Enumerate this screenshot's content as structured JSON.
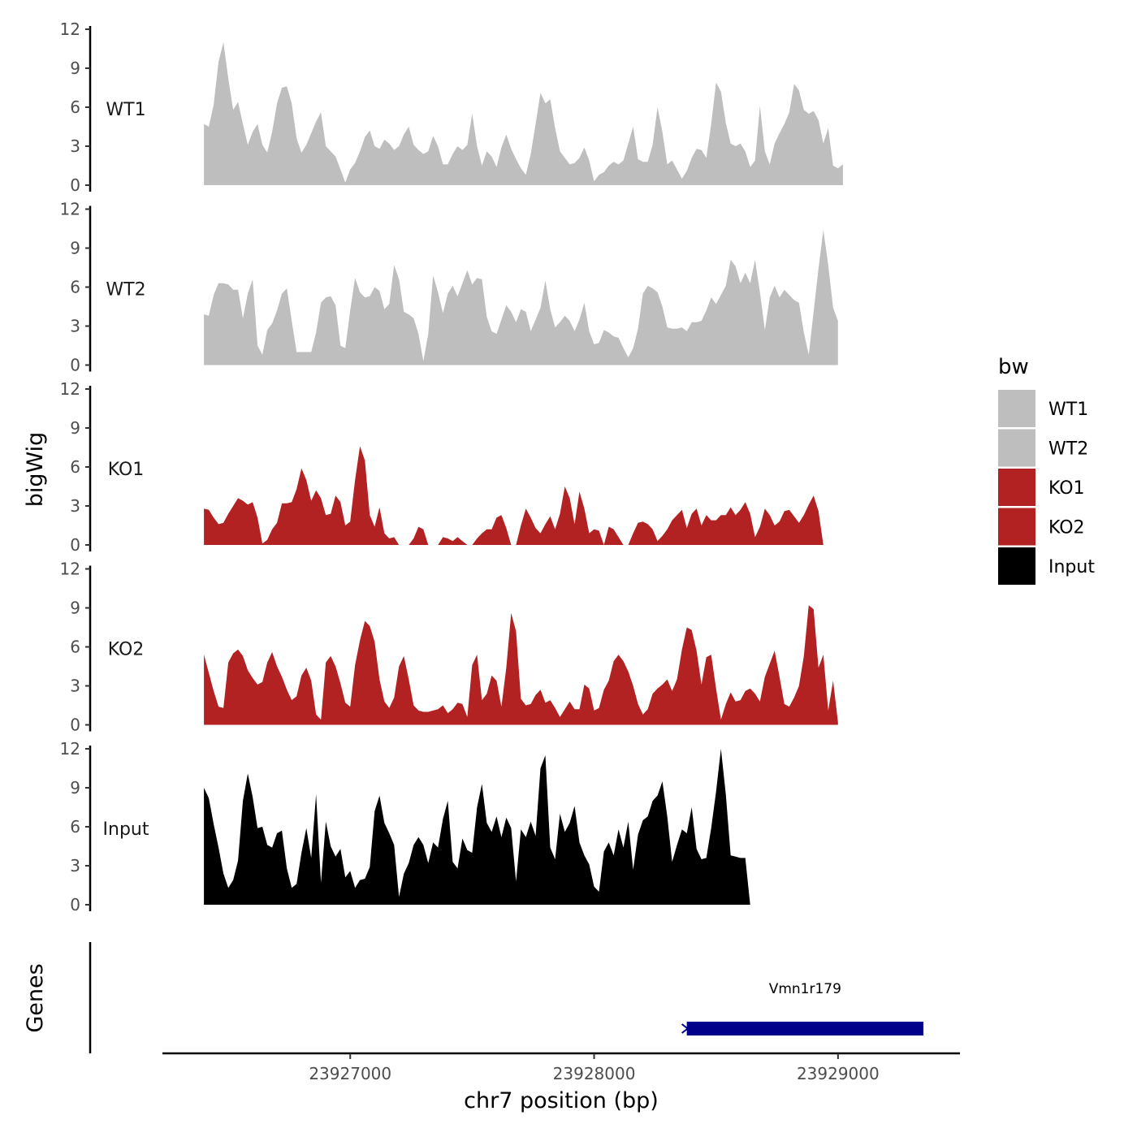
{
  "chart_data": {
    "type": "area",
    "xlabel": "chr7 position (bp)",
    "ylabel": "bigWig",
    "genes_label": "Genes",
    "xlim": [
      23926230,
      23929500
    ],
    "x_ticks": [
      {
        "value": 23927000,
        "label": "23927000"
      },
      {
        "value": 23928000,
        "label": "23928000"
      },
      {
        "value": 23929000,
        "label": "23929000"
      }
    ],
    "ylim": [
      0,
      12
    ],
    "y_ticks": [
      {
        "value": 0,
        "label": "0"
      },
      {
        "value": 3,
        "label": "3"
      },
      {
        "value": 6,
        "label": "6"
      },
      {
        "value": 9,
        "label": "9"
      },
      {
        "value": 12,
        "label": "12"
      }
    ],
    "x_start": 23926400,
    "x_step": 20,
    "legend": {
      "title": "bw",
      "items": [
        {
          "label": "WT1",
          "color": "#bebebe"
        },
        {
          "label": "WT2",
          "color": "#bebebe"
        },
        {
          "label": "KO1",
          "color": "#b22222"
        },
        {
          "label": "KO2",
          "color": "#b22222"
        },
        {
          "label": "Input",
          "color": "#000000"
        }
      ]
    },
    "series": [
      {
        "name": "WT1",
        "color": "#bebebe",
        "values": [
          4.7,
          4.5,
          6.2,
          9.5,
          11,
          8.2,
          5.8,
          6.4,
          4.7,
          3.1,
          4.1,
          4.7,
          3.1,
          2.5,
          4.1,
          6.3,
          7.5,
          7.6,
          6.3,
          3.6,
          2.5,
          3.1,
          4,
          4.9,
          5.6,
          3,
          2.6,
          2.2,
          1.2,
          0.2,
          1.2,
          1.7,
          2.6,
          3.7,
          4.2,
          3,
          2.8,
          3.5,
          3.2,
          2.7,
          3,
          3.9,
          4.5,
          3.1,
          2.7,
          2.4,
          2.6,
          3.8,
          3,
          1.6,
          1.6,
          2.4,
          3,
          2.7,
          3.1,
          5.5,
          3,
          1.5,
          2.6,
          2.2,
          1.4,
          2.9,
          3.9,
          2.8,
          2,
          1.3,
          0.8,
          2.4,
          4.7,
          7.1,
          6.3,
          6.6,
          4.4,
          2.6,
          2.1,
          1.6,
          1.7,
          2.1,
          2.9,
          1.9,
          0.3,
          0.8,
          1,
          1.5,
          1.8,
          1.6,
          1.9,
          3.2,
          4.5,
          2,
          1.8,
          1.8,
          3.1,
          6,
          4.1,
          1.6,
          1.9,
          1.2,
          0.5,
          1.1,
          2.1,
          2.8,
          2.7,
          2.1,
          4.7,
          7.9,
          7.2,
          4.8,
          3.2,
          3,
          3.2,
          2.6,
          1.4,
          1.9,
          6.1,
          2.6,
          1.6,
          3.2,
          4,
          4.7,
          5.6,
          7.8,
          7.3,
          5.8,
          5.5,
          5.7,
          5,
          3.2,
          4.4,
          1.5,
          1.3,
          1.6
        ]
      },
      {
        "name": "WT2",
        "color": "#bebebe",
        "values": [
          3.9,
          3.8,
          5.4,
          6.3,
          6.3,
          6.2,
          5.8,
          5.8,
          3.6,
          5.5,
          6.6,
          1.5,
          0.8,
          2.7,
          3.2,
          4.2,
          5.5,
          5.9,
          3.4,
          1,
          1,
          1,
          1,
          2.5,
          4.8,
          5.2,
          5.3,
          4.6,
          1.5,
          1.3,
          4.2,
          6.7,
          5.6,
          5.2,
          5.3,
          6,
          5.7,
          4.3,
          4.7,
          7.7,
          6.6,
          4.1,
          3.9,
          3.6,
          2.4,
          0.3,
          2.4,
          6.9,
          5.6,
          4,
          5.5,
          6.1,
          5.3,
          6.3,
          7.3,
          6.2,
          6.7,
          6.6,
          3.7,
          2.6,
          2.4,
          3.5,
          4.6,
          4.1,
          3.3,
          4.3,
          4.1,
          2.6,
          3.5,
          4.4,
          6.5,
          4.3,
          2.9,
          3.3,
          3.8,
          3.4,
          2.6,
          3.5,
          4.8,
          2.6,
          1.6,
          1.7,
          2.7,
          2.5,
          2.2,
          2.1,
          1.3,
          0.6,
          1.3,
          2.8,
          5.5,
          6.1,
          5.9,
          5.6,
          4.5,
          2.9,
          2.8,
          2.8,
          2.9,
          2.6,
          3.3,
          3.3,
          3.4,
          4.2,
          5.2,
          4.7,
          5.4,
          6.1,
          8.1,
          7.6,
          6.3,
          7.1,
          6.3,
          8.1,
          5.6,
          2.7,
          5.2,
          6.1,
          5.2,
          5.8,
          5.4,
          5,
          4.8,
          2.5,
          0.8,
          4.1,
          7.4,
          10.4,
          7.7,
          4.4,
          3.4
        ]
      },
      {
        "name": "KO1",
        "color": "#b22222",
        "values": [
          2.8,
          2.7,
          2.1,
          1.6,
          1.7,
          2.4,
          3,
          3.6,
          3.4,
          3.1,
          3.3,
          2.1,
          0.1,
          0.4,
          1.2,
          1.7,
          3.2,
          3.2,
          3.3,
          4.3,
          5.9,
          5,
          3.4,
          4.2,
          3.6,
          2.3,
          2.4,
          3.8,
          3.3,
          1.5,
          1.8,
          5,
          7.6,
          6.5,
          2.3,
          1.4,
          2.9,
          0.9,
          0.5,
          0.6,
          0,
          0,
          0,
          0.5,
          1.4,
          1.2,
          0,
          0,
          0,
          0.6,
          0.5,
          0.3,
          0.6,
          0.3,
          0,
          0,
          0.5,
          0.9,
          1.2,
          1.2,
          2.1,
          2.3,
          1.3,
          0,
          0,
          1.5,
          2.8,
          2.1,
          1.3,
          0.9,
          1.6,
          2.2,
          1.2,
          2.4,
          4.5,
          3.6,
          1.6,
          4.1,
          2.8,
          0.9,
          1.2,
          1.1,
          0,
          1.4,
          1.2,
          0.6,
          0,
          0,
          0.9,
          1.7,
          1.8,
          1.6,
          1.2,
          0.3,
          0.7,
          1.2,
          1.9,
          2.3,
          2.7,
          1.3,
          2.4,
          2.8,
          1.5,
          2.3,
          1.9,
          1.9,
          2.3,
          2.3,
          2.9,
          2.3,
          2.7,
          3.3,
          2.4,
          0.6,
          1.4,
          2.8,
          2.3,
          1.5,
          1.8,
          2.6,
          2.7,
          2.2,
          1.7,
          2.3,
          3.1,
          3.8,
          2.6,
          0
        ]
      },
      {
        "name": "KO2",
        "color": "#b22222",
        "values": [
          5.4,
          4,
          2.6,
          1.4,
          1.3,
          4.8,
          5.5,
          5.8,
          5.3,
          4.2,
          3.6,
          3.1,
          3.3,
          4.8,
          5.6,
          4.5,
          3.7,
          2.7,
          1.9,
          2.2,
          3.8,
          4.4,
          3.4,
          0.8,
          0.4,
          4.8,
          5.3,
          4.5,
          3.2,
          1.7,
          1.4,
          4.6,
          6.5,
          8,
          7.6,
          6.4,
          3.5,
          1.8,
          1.3,
          2.1,
          4.5,
          5.3,
          3.5,
          1.5,
          1.1,
          1,
          1,
          1.1,
          1.2,
          1.5,
          0.9,
          1.2,
          1.7,
          1.6,
          0.6,
          4.6,
          5.4,
          1.9,
          2.4,
          3.8,
          3.4,
          1.4,
          4.4,
          8.6,
          7.2,
          2,
          1.5,
          1.6,
          2.3,
          2.7,
          1.7,
          1.9,
          1.3,
          0.6,
          1.2,
          1.8,
          1.2,
          1.2,
          3.1,
          2.8,
          1.1,
          1.3,
          2.7,
          3.4,
          4.9,
          5.4,
          4.9,
          4.1,
          3,
          1.6,
          0.8,
          1.2,
          2.4,
          2.8,
          3.1,
          3.5,
          2.6,
          3.5,
          5.8,
          7.5,
          7.3,
          5.7,
          3.1,
          5.2,
          5.4,
          2.8,
          0.4,
          1.6,
          2.5,
          1.8,
          1.9,
          2.6,
          2.8,
          2.4,
          1.8,
          3.7,
          4.7,
          5.7,
          3.7,
          1.6,
          1.4,
          2.1,
          3,
          5.3,
          9.2,
          8.9,
          4.4,
          5.4,
          1.1,
          3.4,
          0.2
        ]
      },
      {
        "name": "Input",
        "color": "#000000",
        "values": [
          9,
          8.2,
          6.2,
          4.4,
          2.4,
          1.3,
          1.9,
          3.4,
          8,
          10.1,
          8.3,
          5.9,
          6,
          4.6,
          4.4,
          5.5,
          5.7,
          2.8,
          1.3,
          1.6,
          4,
          5.9,
          3.6,
          8.5,
          1.7,
          6.4,
          4.5,
          3.7,
          4.3,
          2.1,
          2.6,
          1.3,
          1.9,
          2,
          2.9,
          7.2,
          8.4,
          6.3,
          5.5,
          4.6,
          0.6,
          2.4,
          3.2,
          4.6,
          5.2,
          4.6,
          3.2,
          4.8,
          4.4,
          6.6,
          8,
          3.3,
          2.8,
          5.1,
          4.2,
          4,
          7.5,
          9.3,
          6.3,
          5.6,
          6.8,
          5.2,
          6.7,
          5.9,
          1.8,
          5.8,
          5.2,
          6.4,
          5.3,
          10.5,
          11.5,
          4.4,
          3.5,
          7,
          5.6,
          6.3,
          7.6,
          4.8,
          3.8,
          3.1,
          1.4,
          1,
          4.1,
          4.8,
          3.8,
          5.8,
          4.4,
          6.4,
          2.7,
          5.4,
          6.5,
          6.8,
          8,
          8.4,
          9.5,
          6.8,
          3.3,
          4.6,
          5.8,
          5.5,
          7.5,
          4.3,
          3.5,
          3.6,
          5.9,
          8.7,
          12,
          8.5,
          3.8,
          3.7,
          3.6,
          3.6,
          0
        ]
      }
    ],
    "genes": [
      {
        "name": "Vmn1r179",
        "start": 23928380,
        "end": 23929350,
        "strand": "+",
        "color": "#00008b"
      }
    ]
  }
}
